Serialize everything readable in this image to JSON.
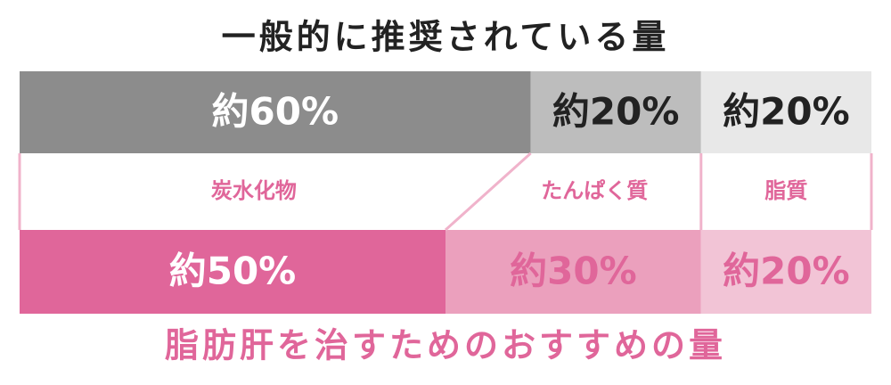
{
  "chart_data": {
    "type": "stacked-bar",
    "categories": [
      "一般的に推奨されている量",
      "脂肪肝を治すためのおすすめの量"
    ],
    "category_colors": [
      "#222222",
      "#e0669a"
    ],
    "series": [
      {
        "name": "炭水化物",
        "colors": [
          "#8c8c8c",
          "#e0669a"
        ],
        "label_colors": [
          "#ffffff",
          "#ffffff"
        ],
        "values": [
          60,
          50
        ],
        "value_labels": [
          "約60%",
          "約50%"
        ]
      },
      {
        "name": "たんぱく質",
        "colors": [
          "#bdbdbd",
          "#eba0bd"
        ],
        "label_colors": [
          "#222222",
          "#e0669a"
        ],
        "values": [
          20,
          30
        ],
        "value_labels": [
          "約20%",
          "約30%"
        ]
      },
      {
        "name": "脂質",
        "colors": [
          "#e8e8e8",
          "#f2c4d6"
        ],
        "label_colors": [
          "#222222",
          "#e0669a"
        ],
        "values": [
          20,
          20
        ],
        "value_labels": [
          "約20%",
          "約20%"
        ]
      }
    ],
    "legend_color": "#e0669a"
  }
}
